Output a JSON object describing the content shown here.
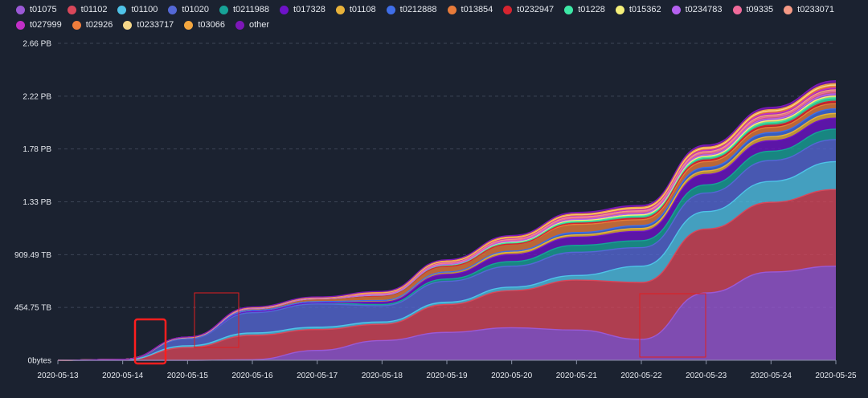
{
  "chart_data": {
    "type": "area",
    "stacked": true,
    "title": "",
    "xlabel": "",
    "ylabel": "",
    "legend_position": "top",
    "grid": {
      "y": true,
      "x": false,
      "style": "dashed"
    },
    "x": [
      "2020-05-13",
      "2020-05-14",
      "2020-05-15",
      "2020-05-16",
      "2020-05-17",
      "2020-05-18",
      "2020-05-19",
      "2020-05-20",
      "2020-05-21",
      "2020-05-22",
      "2020-05-23",
      "2020-05-24",
      "2020-05-25"
    ],
    "y_ticks": [
      {
        "value": 0,
        "label": "0bytes"
      },
      {
        "value": 454.75,
        "label": "454.75 TB"
      },
      {
        "value": 909.49,
        "label": "909.49 TB"
      },
      {
        "value": 1364.24,
        "label": "1.33 PB"
      },
      {
        "value": 1818.99,
        "label": "1.78 PB"
      },
      {
        "value": 2273.74,
        "label": "2.22 PB"
      },
      {
        "value": 2728.48,
        "label": "2.66 PB"
      }
    ],
    "ylim": [
      0,
      2728.48
    ],
    "y_unit": "TB",
    "series": [
      {
        "name": "t01075",
        "color": "#9b59d6",
        "values": [
          0,
          0,
          0,
          5,
          85,
          170,
          240,
          280,
          260,
          180,
          580,
          760,
          810
        ]
      },
      {
        "name": "t01102",
        "color": "#d9475a",
        "values": [
          0,
          2,
          110,
          210,
          180,
          140,
          240,
          320,
          430,
          490,
          550,
          600,
          660
        ]
      },
      {
        "name": "t01100",
        "color": "#4fc3e8",
        "values": [
          0,
          1,
          15,
          20,
          20,
          20,
          20,
          30,
          40,
          140,
          150,
          180,
          240
        ]
      },
      {
        "name": "t01020",
        "color": "#5468d6",
        "values": [
          0,
          5,
          60,
          175,
          200,
          140,
          180,
          180,
          200,
          160,
          160,
          180,
          190
        ]
      },
      {
        "name": "t0211988",
        "color": "#17a398",
        "values": [
          0,
          0,
          5,
          10,
          10,
          10,
          20,
          40,
          60,
          60,
          70,
          80,
          90
        ]
      },
      {
        "name": "t017328",
        "color": "#6e12c9",
        "values": [
          0,
          0,
          0,
          0,
          0,
          20,
          40,
          60,
          70,
          80,
          90,
          90,
          95
        ]
      },
      {
        "name": "t01108",
        "color": "#e8b23a",
        "values": [
          0,
          0,
          0,
          10,
          10,
          15,
          20,
          20,
          20,
          25,
          30,
          35,
          40
        ]
      },
      {
        "name": "t0212888",
        "color": "#3f6ee8",
        "values": [
          0,
          0,
          0,
          0,
          0,
          0,
          0,
          10,
          20,
          25,
          30,
          35,
          40
        ]
      },
      {
        "name": "t013854",
        "color": "#e87b3a",
        "values": [
          0,
          0,
          5,
          15,
          25,
          40,
          50,
          60,
          70,
          50,
          50,
          45,
          45
        ]
      },
      {
        "name": "t0232947",
        "color": "#d6242f",
        "values": [
          0,
          0,
          0,
          0,
          0,
          0,
          0,
          0,
          10,
          12,
          15,
          18,
          20
        ]
      },
      {
        "name": "t01228",
        "color": "#3de8a6",
        "values": [
          0,
          0,
          0,
          0,
          0,
          5,
          10,
          12,
          15,
          20,
          20,
          25,
          30
        ]
      },
      {
        "name": "t015362",
        "color": "#f5f07a",
        "values": [
          0,
          0,
          0,
          0,
          0,
          3,
          5,
          8,
          10,
          10,
          12,
          15,
          15
        ]
      },
      {
        "name": "t0234783",
        "color": "#b561f0",
        "values": [
          0,
          0,
          0,
          0,
          0,
          0,
          0,
          5,
          8,
          10,
          12,
          15,
          18
        ]
      },
      {
        "name": "t09335",
        "color": "#f06a9a",
        "values": [
          0,
          0,
          2,
          5,
          5,
          8,
          10,
          10,
          12,
          15,
          15,
          18,
          20
        ]
      },
      {
        "name": "t0233071",
        "color": "#f59a86",
        "values": [
          0,
          0,
          0,
          0,
          0,
          3,
          5,
          8,
          10,
          10,
          12,
          15,
          15
        ]
      },
      {
        "name": "t027999",
        "color": "#c22fc7",
        "values": [
          0,
          0,
          2,
          3,
          3,
          4,
          5,
          6,
          8,
          10,
          12,
          14,
          16
        ]
      },
      {
        "name": "t02926",
        "color": "#ef7d3c",
        "values": [
          0,
          0,
          0,
          2,
          2,
          3,
          4,
          5,
          6,
          8,
          10,
          12,
          14
        ]
      },
      {
        "name": "t0233717",
        "color": "#f5d78a",
        "values": [
          0,
          0,
          0,
          0,
          0,
          2,
          3,
          4,
          5,
          6,
          8,
          10,
          12
        ]
      },
      {
        "name": "t03066",
        "color": "#f3a63f",
        "values": [
          0,
          0,
          0,
          0,
          0,
          2,
          3,
          4,
          5,
          6,
          8,
          10,
          12
        ]
      },
      {
        "name": "other",
        "color": "#7d17b8",
        "values": [
          0,
          0,
          2,
          4,
          5,
          8,
          10,
          12,
          14,
          16,
          18,
          20,
          24
        ]
      }
    ]
  }
}
